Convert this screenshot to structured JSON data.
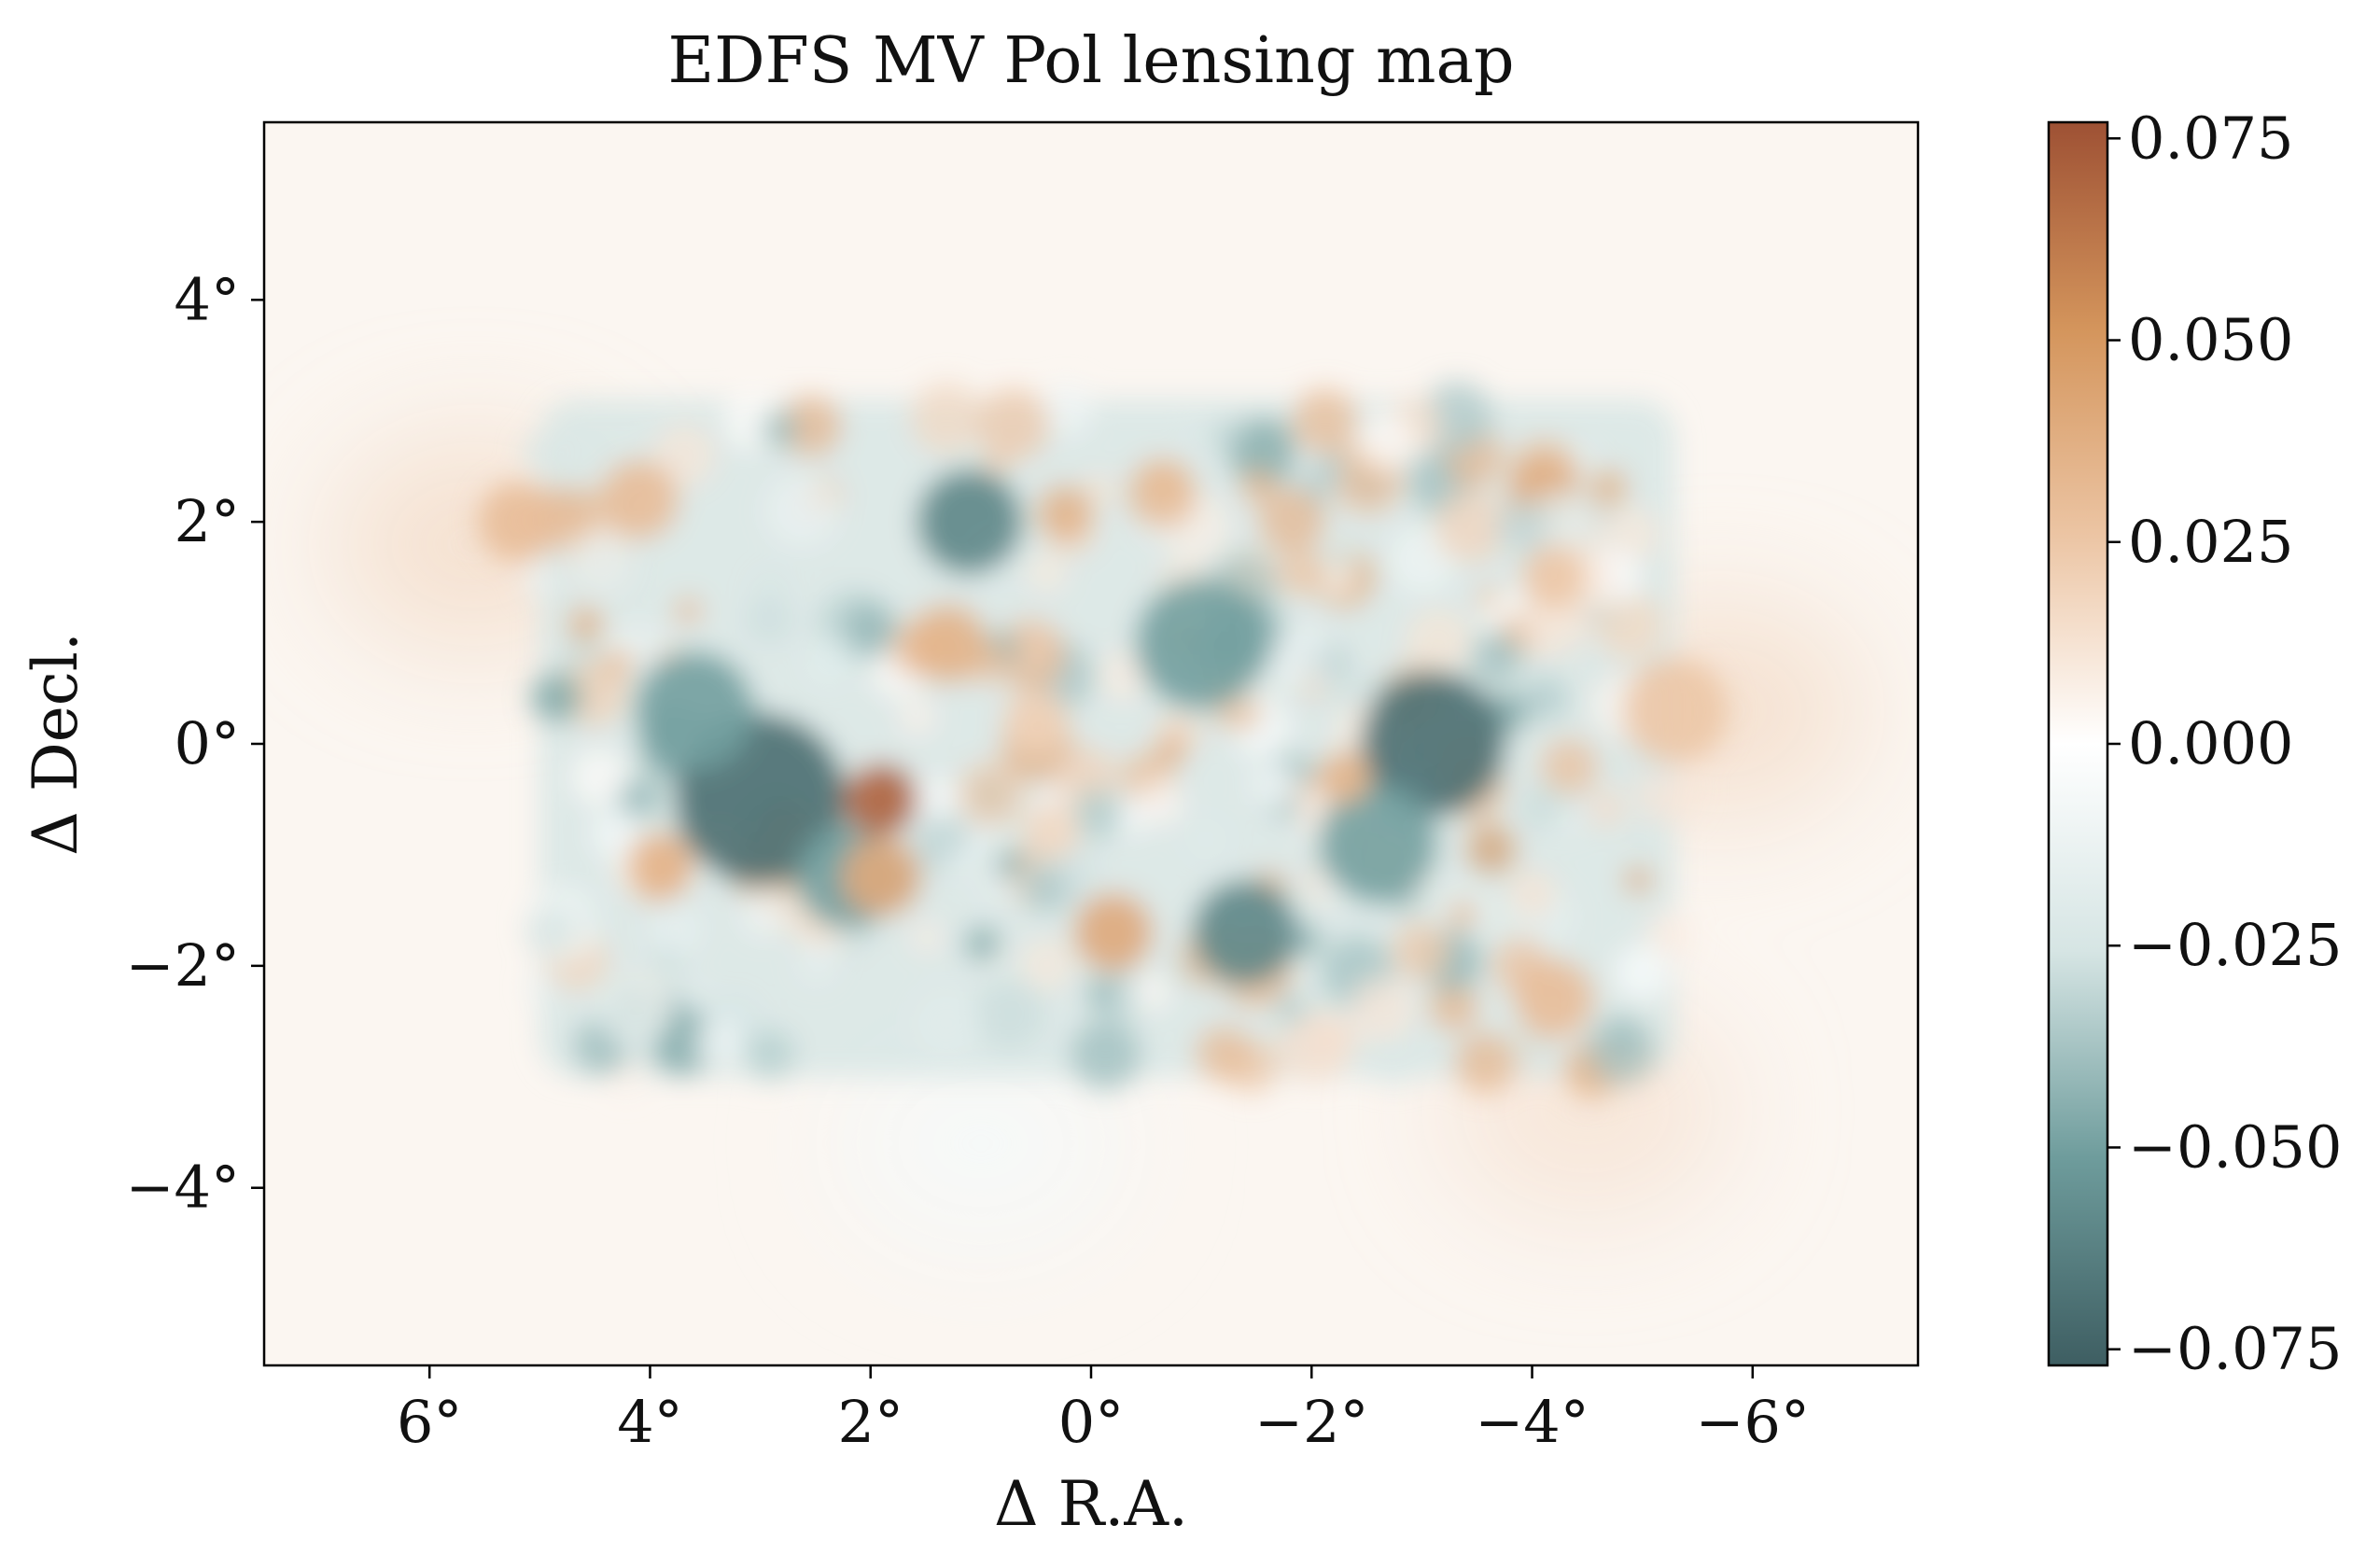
{
  "chart_data": {
    "type": "heatmap",
    "title": "EDFS MV Pol lensing map",
    "xlabel": "Δ R.A.",
    "ylabel": "Δ Decl.",
    "x_range": [
      7.5,
      -7.5
    ],
    "y_range": [
      -5.6,
      5.6
    ],
    "x_ticks": [
      {
        "value": 6,
        "label": "6°"
      },
      {
        "value": 4,
        "label": "4°"
      },
      {
        "value": 2,
        "label": "2°"
      },
      {
        "value": 0,
        "label": "0°"
      },
      {
        "value": -2,
        "label": "−2°"
      },
      {
        "value": -4,
        "label": "−4°"
      },
      {
        "value": -6,
        "label": "−6°"
      }
    ],
    "y_ticks": [
      {
        "value": 4,
        "label": "4°"
      },
      {
        "value": 2,
        "label": "2°"
      },
      {
        "value": 0,
        "label": "0°"
      },
      {
        "value": -2,
        "label": "−2°"
      },
      {
        "value": -4,
        "label": "−4°"
      }
    ],
    "colorbar": {
      "range": [
        -0.077,
        0.077
      ],
      "colormap": [
        "#3e5e62",
        "#6e9c9c",
        "#d6e5e4",
        "#ffffff",
        "#ecc5a4",
        "#d4955c",
        "#9e5134"
      ],
      "ticks": [
        {
          "value": 0.075,
          "label": "0.075"
        },
        {
          "value": 0.05,
          "label": "0.050"
        },
        {
          "value": 0.025,
          "label": "0.025"
        },
        {
          "value": 0,
          "label": "0.000"
        },
        {
          "value": -0.025,
          "label": "−0.025"
        },
        {
          "value": -0.05,
          "label": "−0.050"
        },
        {
          "value": -0.075,
          "label": "−0.075"
        }
      ]
    },
    "field_extent": {
      "x": [
        5.0,
        -5.3
      ],
      "y": [
        -3.0,
        3.1
      ]
    },
    "features": [
      {
        "x": 3.0,
        "y": -0.5,
        "amp": -0.07,
        "r": 1.3
      },
      {
        "x": 3.6,
        "y": 0.3,
        "amp": -0.05,
        "r": 0.9
      },
      {
        "x": 2.2,
        "y": -1.2,
        "amp": -0.05,
        "r": 0.8
      },
      {
        "x": -3.1,
        "y": 0.0,
        "amp": -0.07,
        "r": 1.1
      },
      {
        "x": -2.6,
        "y": -0.9,
        "amp": -0.05,
        "r": 0.9
      },
      {
        "x": 1.1,
        "y": 2.0,
        "amp": -0.06,
        "r": 0.8
      },
      {
        "x": -1.4,
        "y": -1.7,
        "amp": -0.06,
        "r": 0.8
      },
      {
        "x": -1.0,
        "y": 0.9,
        "amp": -0.05,
        "r": 1.0
      },
      {
        "x": 1.9,
        "y": -0.5,
        "amp": 0.07,
        "r": 0.55
      },
      {
        "x": 1.9,
        "y": -1.2,
        "amp": 0.04,
        "r": 0.6
      },
      {
        "x": -0.2,
        "y": -1.7,
        "amp": 0.04,
        "r": 0.6
      },
      {
        "x": 4.1,
        "y": 2.2,
        "amp": 0.03,
        "r": 0.6
      },
      {
        "x": 3.9,
        "y": -1.1,
        "amp": 0.035,
        "r": 0.5
      },
      {
        "x": 1.3,
        "y": 0.9,
        "amp": 0.035,
        "r": 0.6
      },
      {
        "x": -2.3,
        "y": -0.3,
        "amp": 0.035,
        "r": 0.4
      },
      {
        "x": -4.2,
        "y": -2.3,
        "amp": 0.03,
        "r": 0.6
      },
      {
        "x": 5.2,
        "y": 2.0,
        "amp": 0.03,
        "r": 0.6
      },
      {
        "x": -5.3,
        "y": 0.3,
        "amp": 0.025,
        "r": 0.8
      },
      {
        "x": -4.2,
        "y": 1.5,
        "amp": 0.025,
        "r": 0.5
      },
      {
        "x": 0.5,
        "y": 0.2,
        "amp": 0.02,
        "r": 0.5
      }
    ]
  }
}
